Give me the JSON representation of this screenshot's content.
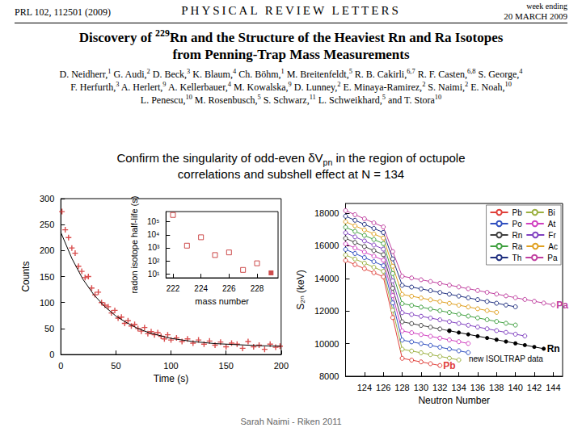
{
  "header": {
    "citation": "PRL 102, 112501 (2009)",
    "journal": "PHYSICAL REVIEW LETTERS",
    "week": "week ending",
    "date": "20 MARCH 2009"
  },
  "title": [
    [
      "Discovery of ",
      {
        "sup": "229"
      },
      "Rn and the Structure of the Heaviest Rn and Ra Isotopes"
    ],
    [
      "from Penning-Trap Mass Measurements"
    ]
  ],
  "authors": [
    [
      {
        "name": "D. Neidherr,",
        "aff": "1"
      },
      {
        "name": "G. Audi,",
        "aff": "2"
      },
      {
        "name": "D. Beck,",
        "aff": "3"
      },
      {
        "name": "K. Blaum,",
        "aff": "4"
      },
      {
        "name": "Ch. Böhm,",
        "aff": "1"
      },
      {
        "name": "M. Breitenfeldt,",
        "aff": "5"
      },
      {
        "name": "R. B. Cakirli,",
        "aff": "6,7"
      },
      {
        "name": "R. F. Casten,",
        "aff": "6,8"
      },
      {
        "name": "S. George,",
        "aff": "4"
      }
    ],
    [
      {
        "name": "F. Herfurth,",
        "aff": "3"
      },
      {
        "name": "A. Herlert,",
        "aff": "9"
      },
      {
        "name": "A. Kellerbauer,",
        "aff": "4"
      },
      {
        "name": "M. Kowalska,",
        "aff": "9"
      },
      {
        "name": "D. Lunney,",
        "aff": "2"
      },
      {
        "name": "E. Minaya-Ramirez,",
        "aff": "2"
      },
      {
        "name": "S. Naimi,",
        "aff": "2"
      },
      {
        "name": "E. Noah,",
        "aff": "10"
      }
    ],
    [
      {
        "name": "L. Penescu,",
        "aff": "10"
      },
      {
        "name": "M. Rosenbusch,",
        "aff": "5"
      },
      {
        "name": "S. Schwarz,",
        "aff": "11"
      },
      {
        "name": "L. Schweikhard,",
        "aff": "5"
      },
      {
        "name": "and T. Stora",
        "aff": "10"
      }
    ]
  ],
  "caption": [
    [
      "Confirm the singularity of odd-even δV",
      {
        "sub": "pn"
      },
      " in the region of octupole"
    ],
    [
      "correlations and subshell effect at  N = 134"
    ]
  ],
  "footer": "Sarah Naimi - Riken 2011",
  "chart_data": [
    {
      "type": "scatter",
      "x_label": "Time (s)",
      "y_label": "Counts",
      "grid": false,
      "xlim": [
        0,
        200
      ],
      "xticks": [
        0,
        50,
        100,
        150,
        200
      ],
      "ylim": [
        0,
        300
      ],
      "yticks": [
        0,
        50,
        100,
        150,
        200,
        250,
        300
      ],
      "series": [
        {
          "type": "scatter",
          "color": "#d02020",
          "marker": "plus",
          "x": [
            1,
            4,
            7,
            10,
            13,
            16,
            19,
            22,
            25,
            28,
            31,
            34,
            37,
            40,
            43,
            46,
            49,
            52,
            55,
            58,
            61,
            64,
            67,
            70,
            73,
            76,
            79,
            82,
            85,
            88,
            91,
            94,
            97,
            100,
            105,
            110,
            115,
            120,
            125,
            130,
            135,
            140,
            145,
            150,
            155,
            160,
            165,
            170,
            175,
            180,
            185,
            190,
            195,
            199
          ],
          "values": [
            275,
            240,
            225,
            205,
            195,
            170,
            160,
            148,
            150,
            128,
            115,
            120,
            100,
            95,
            92,
            80,
            85,
            70,
            72,
            60,
            65,
            55,
            58,
            50,
            45,
            52,
            40,
            44,
            38,
            42,
            35,
            30,
            38,
            28,
            32,
            25,
            30,
            22,
            28,
            20,
            26,
            18,
            24,
            15,
            22,
            20,
            12,
            25,
            15,
            18,
            10,
            20,
            14,
            16
          ]
        },
        {
          "type": "line",
          "color": "#000000",
          "x": [
            0,
            10,
            20,
            30,
            40,
            50,
            60,
            70,
            80,
            100,
            120,
            140,
            160,
            180,
            200
          ],
          "values": [
            235,
            185,
            145,
            115,
            92,
            74,
            61,
            50,
            42,
            31,
            25,
            21,
            19,
            17,
            16
          ]
        }
      ]
    },
    {
      "type": "scatter",
      "x_label": "mass number",
      "y_label": "radon isotope half-life (s)",
      "grid": false,
      "log": "y",
      "xlim": [
        221.5,
        229.5
      ],
      "xticks": [
        222,
        224,
        226,
        228
      ],
      "ylim": [
        5,
        600000
      ],
      "yticks": [
        {
          "value": 10,
          "label": "10¹"
        },
        {
          "value": 100,
          "label": "10²"
        },
        {
          "value": 1000,
          "label": "10³"
        },
        {
          "value": 10000,
          "label": "10⁴"
        },
        {
          "value": 100000,
          "label": "10⁵"
        }
      ],
      "series": [
        {
          "color": "#c02020",
          "marker": "square_open",
          "x": [
            222,
            223,
            224,
            225,
            226,
            227,
            228
          ],
          "values": [
            330350,
            1460,
            6420,
            279,
            444,
            20.2,
            65
          ]
        },
        {
          "color": "#c02020",
          "marker": "square",
          "x": [
            229
          ],
          "values": [
            12
          ]
        }
      ]
    },
    {
      "type": "line",
      "x_label": "Neutron Number",
      "y_label": "S₂ₙ (keV)",
      "grid": false,
      "legend": "top-right",
      "marker": "circle_open",
      "xlim": [
        122,
        145
      ],
      "xticks": [
        124,
        126,
        128,
        130,
        132,
        134,
        136,
        138,
        140,
        142,
        144
      ],
      "ylim": [
        8000,
        18600
      ],
      "yticks": [
        8000,
        10000,
        12000,
        14000,
        16000,
        18000
      ],
      "x": [
        122,
        123,
        124,
        125,
        126,
        127,
        128,
        129,
        130,
        131,
        132,
        133,
        134,
        135,
        136,
        137,
        138,
        139,
        140,
        141,
        142,
        143,
        144
      ],
      "series": [
        {
          "name": "Pb",
          "color": "#e0403a",
          "values": [
            15100,
            14850,
            14600,
            14350,
            14100,
            11600,
            9100,
            8990,
            8880,
            8770,
            8660,
            null,
            null,
            null,
            null,
            null,
            null,
            null,
            null,
            null,
            null,
            null,
            null
          ]
        },
        {
          "name": "Bi",
          "color": "#9bb040",
          "values": [
            15440,
            15190,
            14940,
            14690,
            14440,
            12050,
            9660,
            9550,
            9440,
            9330,
            9220,
            9110,
            9000,
            null,
            null,
            null,
            null,
            null,
            null,
            null,
            null,
            null,
            null
          ]
        },
        {
          "name": "Po",
          "color": "#3050c0",
          "values": [
            15780,
            15530,
            15280,
            15030,
            14780,
            12500,
            10220,
            10110,
            10000,
            9890,
            9780,
            9670,
            9560,
            9450,
            null,
            null,
            null,
            null,
            null,
            null,
            null,
            null,
            null
          ]
        },
        {
          "name": "At",
          "color": "#d040c0",
          "values": [
            16120,
            15870,
            15620,
            15370,
            15120,
            12950,
            10780,
            10670,
            10560,
            10450,
            10340,
            10230,
            10120,
            10010,
            null,
            null,
            null,
            null,
            null,
            null,
            null,
            null,
            null
          ]
        },
        {
          "name": "Rn",
          "color": "#404040",
          "values": [
            16460,
            16210,
            15960,
            15710,
            15460,
            13400,
            11340,
            11230,
            11120,
            11010,
            10900,
            10790,
            null,
            null,
            null,
            null,
            null,
            null,
            null,
            null,
            null,
            null,
            null
          ]
        },
        {
          "name": "Fr",
          "color": "#8040c0",
          "values": [
            16800,
            16550,
            16300,
            16050,
            15800,
            13850,
            11900,
            11790,
            11680,
            11570,
            11460,
            11350,
            11240,
            11130,
            11020,
            10910,
            10800,
            10690,
            10580,
            10470,
            null,
            null,
            null
          ]
        },
        {
          "name": "Ra",
          "color": "#40a040",
          "values": [
            17140,
            16890,
            16640,
            16390,
            16140,
            14300,
            12460,
            12350,
            12240,
            12130,
            12020,
            11910,
            11800,
            11690,
            11580,
            11470,
            11360,
            11250,
            11140,
            null,
            null,
            null,
            null
          ]
        },
        {
          "name": "Ac",
          "color": "#e0a020",
          "values": [
            17480,
            17230,
            16980,
            16730,
            16480,
            14750,
            13020,
            12910,
            12800,
            12690,
            12580,
            12470,
            12360,
            12250,
            12140,
            12030,
            11920,
            null,
            null,
            null,
            null,
            null,
            null
          ]
        },
        {
          "name": "Th",
          "color": "#203080",
          "values": [
            17820,
            17570,
            17320,
            17070,
            16820,
            15200,
            13580,
            13470,
            13360,
            13250,
            13140,
            13030,
            12920,
            12810,
            12700,
            12590,
            12480,
            12370,
            12260,
            null,
            null,
            null,
            null
          ]
        },
        {
          "name": "Pa",
          "color": "#c040a0",
          "values": [
            18160,
            17910,
            17660,
            17410,
            17160,
            15650,
            14140,
            14030,
            13920,
            13810,
            13700,
            13590,
            13480,
            13370,
            13260,
            13150,
            13040,
            12930,
            12820,
            12710,
            12600,
            12490,
            12380
          ]
        },
        {
          "name": "Rn",
          "color": "#000000",
          "marker": "circle",
          "values": [
            null,
            null,
            null,
            null,
            null,
            null,
            null,
            null,
            null,
            null,
            null,
            10790,
            10680,
            10570,
            10460,
            10350,
            10240,
            10130,
            10020,
            9910,
            9800,
            9690,
            null
          ]
        }
      ],
      "annotations": [
        {
          "text": "Pa",
          "series": "Pa"
        },
        {
          "text": "Pb",
          "series": "Pb"
        },
        {
          "text": "Rn",
          "series": "Rn"
        },
        {
          "text": "new ISOLTRAP data",
          "series": "Rn"
        }
      ]
    }
  ]
}
